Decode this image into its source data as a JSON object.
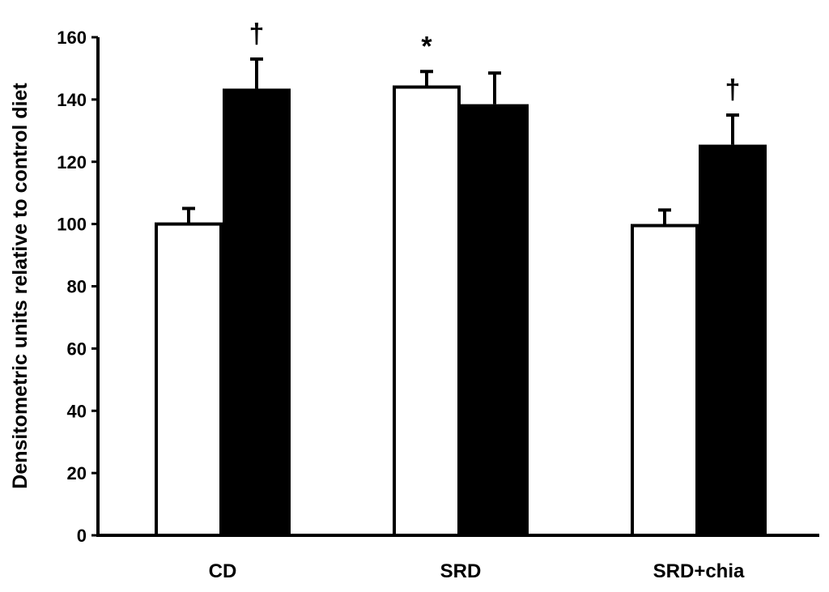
{
  "chart_data": {
    "type": "bar",
    "title": "",
    "xlabel": "",
    "ylabel": "Densitometric units relative to control diet",
    "ylim": [
      0,
      160
    ],
    "yticks": [
      0,
      20,
      40,
      60,
      80,
      100,
      120,
      140,
      160
    ],
    "categories": [
      "CD",
      "SRD",
      "SRD+chia"
    ],
    "series": [
      {
        "color": "#ffffff",
        "values": [
          100,
          144,
          99.5
        ],
        "errors": [
          5,
          5,
          5
        ],
        "annotations": [
          "",
          "*",
          ""
        ]
      },
      {
        "color": "#000000",
        "values": [
          143.5,
          138.5,
          125.5
        ],
        "errors": [
          9.5,
          10,
          9.5
        ],
        "annotations": [
          "†",
          "",
          "†"
        ]
      }
    ],
    "grid": false,
    "legend": "none"
  }
}
